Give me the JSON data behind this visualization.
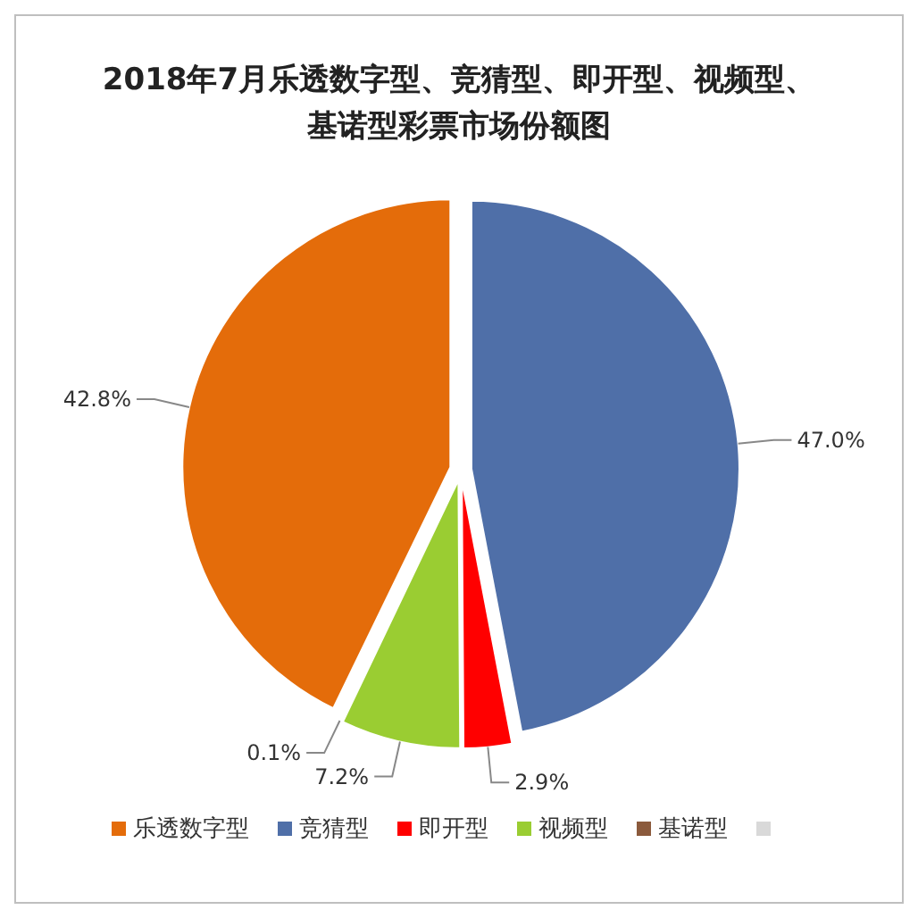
{
  "chart_data": {
    "type": "pie",
    "title": "2018年7月乐透数字型、竞猜型、即开型、视频型、基诺型彩票市场份额图",
    "categories": [
      "乐透数字型",
      "竞猜型",
      "即开型",
      "视频型",
      "基诺型",
      null
    ],
    "values": [
      42.8,
      47.0,
      2.9,
      7.2,
      0.1,
      0
    ],
    "value_labels": [
      "42.8%",
      "47.0%",
      "2.9%",
      "7.2%",
      "0.1%",
      null
    ],
    "colors": [
      "#e46c0a",
      "#4f6fa8",
      "#ff0000",
      "#9acd32",
      "#8b5a3c",
      "#d9d9d9"
    ],
    "legend": "bottom"
  }
}
